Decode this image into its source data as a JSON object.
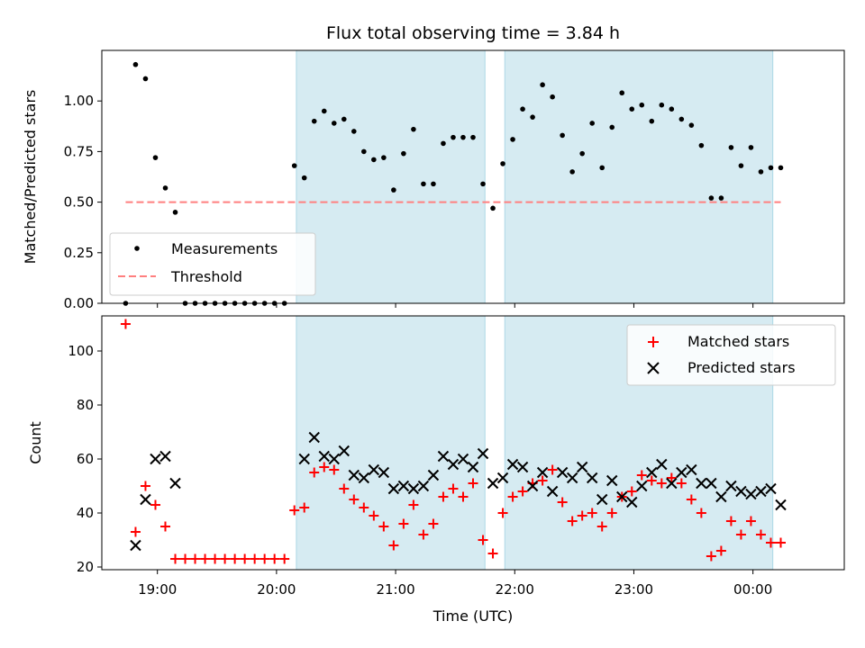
{
  "chart_data": [
    {
      "type": "scatter",
      "title": "Flux total observing time = 3.84 h",
      "xlabel": "",
      "ylabel": "Matched/Predicted stars",
      "xlim": [
        "18:32",
        "00:46"
      ],
      "ylim": [
        0,
        1.25
      ],
      "yticks": [
        "0.00",
        "0.25",
        "0.50",
        "0.75",
        "1.00"
      ],
      "grid": false,
      "legend_position": "lower-left",
      "shaded_intervals": [
        [
          "20:10",
          "21:45"
        ],
        [
          "21:55",
          "00:10"
        ]
      ],
      "series": [
        {
          "name": "Measurements",
          "marker": "dot",
          "color": "#000000",
          "x": [
            "18:44",
            "18:49",
            "18:54",
            "18:59",
            "19:04",
            "19:09",
            "19:14",
            "19:19",
            "19:24",
            "19:29",
            "19:34",
            "19:39",
            "19:44",
            "19:49",
            "19:54",
            "19:59",
            "20:04",
            "20:09",
            "20:14",
            "20:19",
            "20:24",
            "20:29",
            "20:34",
            "20:39",
            "20:44",
            "20:49",
            "20:54",
            "20:59",
            "21:04",
            "21:09",
            "21:14",
            "21:19",
            "21:24",
            "21:29",
            "21:34",
            "21:39",
            "21:44",
            "21:49",
            "21:54",
            "21:59",
            "22:04",
            "22:09",
            "22:14",
            "22:19",
            "22:24",
            "22:29",
            "22:34",
            "22:39",
            "22:44",
            "22:49",
            "22:54",
            "22:59",
            "23:04",
            "23:09",
            "23:14",
            "23:19",
            "23:24",
            "23:29",
            "23:34",
            "23:39",
            "23:44",
            "23:49",
            "23:54",
            "23:59",
            "00:04",
            "00:09",
            "00:14"
          ],
          "y": [
            0.0,
            1.18,
            1.11,
            0.72,
            0.57,
            0.45,
            0.0,
            0.0,
            0.0,
            0.0,
            0.0,
            0.0,
            0.0,
            0.0,
            0.0,
            0.0,
            0.0,
            0.68,
            0.62,
            0.9,
            0.95,
            0.89,
            0.91,
            0.85,
            0.75,
            0.71,
            0.72,
            0.56,
            0.74,
            0.86,
            0.59,
            0.59,
            0.79,
            0.82,
            0.82,
            0.82,
            0.59,
            0.47,
            0.69,
            0.81,
            0.96,
            0.92,
            1.08,
            1.02,
            0.83,
            0.65,
            0.74,
            0.89,
            0.67,
            0.87,
            1.04,
            0.96,
            0.98,
            0.9,
            0.98,
            0.96,
            0.91,
            0.88,
            0.78,
            0.52,
            0.52,
            0.77,
            0.68,
            0.77,
            0.65,
            0.67,
            0.67
          ]
        },
        {
          "name": "Threshold",
          "style": "dashed",
          "color": "#ff7f7f",
          "x": [
            "18:44",
            "00:14"
          ],
          "y": [
            0.5,
            0.5
          ]
        }
      ]
    },
    {
      "type": "scatter",
      "title": "",
      "xlabel": "Time (UTC)",
      "ylabel": "Count",
      "xlim": [
        "18:32",
        "00:46"
      ],
      "ylim": [
        19,
        113
      ],
      "xticks": [
        "19:00",
        "20:00",
        "21:00",
        "22:00",
        "23:00",
        "00:00"
      ],
      "yticks": [
        "20",
        "40",
        "60",
        "80",
        "100"
      ],
      "grid": false,
      "legend_position": "upper-right",
      "shaded_intervals": [
        [
          "20:10",
          "21:45"
        ],
        [
          "21:55",
          "00:10"
        ]
      ],
      "series": [
        {
          "name": "Matched stars",
          "marker": "plus",
          "color": "#ff0000",
          "x": [
            "18:44",
            "18:49",
            "18:54",
            "18:59",
            "19:04",
            "19:09",
            "19:14",
            "19:19",
            "19:24",
            "19:29",
            "19:34",
            "19:39",
            "19:44",
            "19:49",
            "19:54",
            "19:59",
            "20:04",
            "20:09",
            "20:14",
            "20:19",
            "20:24",
            "20:29",
            "20:34",
            "20:39",
            "20:44",
            "20:49",
            "20:54",
            "20:59",
            "21:04",
            "21:09",
            "21:14",
            "21:19",
            "21:24",
            "21:29",
            "21:34",
            "21:39",
            "21:44",
            "21:49",
            "21:54",
            "21:59",
            "22:04",
            "22:09",
            "22:14",
            "22:19",
            "22:24",
            "22:29",
            "22:34",
            "22:39",
            "22:44",
            "22:49",
            "22:54",
            "22:59",
            "23:04",
            "23:09",
            "23:14",
            "23:19",
            "23:24",
            "23:29",
            "23:34",
            "23:39",
            "23:44",
            "23:49",
            "23:54",
            "23:59",
            "00:04",
            "00:09",
            "00:14"
          ],
          "y": [
            110,
            33,
            50,
            43,
            35,
            23,
            23,
            23,
            23,
            23,
            23,
            23,
            23,
            23,
            23,
            23,
            23,
            41,
            42,
            55,
            57,
            56,
            49,
            45,
            42,
            39,
            35,
            28,
            36,
            43,
            32,
            36,
            46,
            49,
            46,
            51,
            30,
            25,
            40,
            46,
            48,
            51,
            52,
            56,
            44,
            37,
            39,
            40,
            35,
            40,
            46,
            48,
            54,
            52,
            51,
            53,
            51,
            45,
            40,
            24,
            26,
            37,
            32,
            37,
            32,
            29,
            29
          ]
        },
        {
          "name": "Predicted stars",
          "marker": "x",
          "color": "#000000",
          "x": [
            "18:49",
            "18:54",
            "18:59",
            "19:04",
            "19:09",
            "20:14",
            "20:19",
            "20:24",
            "20:29",
            "20:34",
            "20:39",
            "20:44",
            "20:49",
            "20:54",
            "20:59",
            "21:04",
            "21:09",
            "21:14",
            "21:19",
            "21:24",
            "21:29",
            "21:34",
            "21:39",
            "21:44",
            "21:49",
            "21:54",
            "21:59",
            "22:04",
            "22:09",
            "22:14",
            "22:19",
            "22:24",
            "22:29",
            "22:34",
            "22:39",
            "22:44",
            "22:49",
            "22:54",
            "22:59",
            "23:04",
            "23:09",
            "23:14",
            "23:19",
            "23:24",
            "23:29",
            "23:34",
            "23:39",
            "23:44",
            "23:49",
            "23:54",
            "23:59",
            "00:04",
            "00:09",
            "00:14"
          ],
          "y": [
            28,
            45,
            60,
            61,
            51,
            60,
            68,
            61,
            60,
            63,
            54,
            53,
            56,
            55,
            49,
            50,
            49,
            50,
            54,
            61,
            58,
            60,
            57,
            62,
            51,
            53,
            58,
            57,
            50,
            55,
            48,
            55,
            53,
            57,
            53,
            45,
            52,
            46,
            44,
            50,
            55,
            58,
            51,
            55,
            56,
            51,
            51,
            46,
            50,
            48,
            47,
            48,
            49,
            43
          ]
        }
      ]
    }
  ],
  "colors": {
    "shade": "#add8e6",
    "matched": "#ff0000",
    "threshold": "#ff7f7f",
    "measurement": "#000000"
  }
}
